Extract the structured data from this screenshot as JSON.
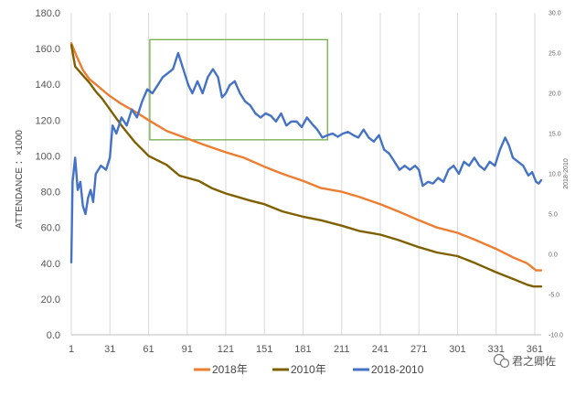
{
  "chart_data": {
    "type": "line",
    "title": "",
    "xlabel": "",
    "ylabel": "ATTENDANCE  ：×1000",
    "y2label": "2018-2010",
    "x_ticks": [
      1,
      31,
      61,
      91,
      121,
      151,
      181,
      211,
      241,
      271,
      301,
      331,
      361
    ],
    "x_range": [
      1,
      366
    ],
    "ylim": [
      0,
      180
    ],
    "y_ticks": [
      "0.0",
      "20.0",
      "40.0",
      "60.0",
      "80.0",
      "100.0",
      "120.0",
      "140.0",
      "160.0",
      "180.0"
    ],
    "y2lim": [
      -10,
      30
    ],
    "y2_ticks": [
      "-10.0",
      "-5.0",
      "0.0",
      "5.0",
      "10.0",
      "15.0",
      "20.0",
      "25.0",
      "30.0"
    ],
    "grid": "vertical",
    "legend_position": "bottom",
    "series": [
      {
        "name": "2018年",
        "axis": "left",
        "color": "#ed7d31",
        "points": [
          [
            1,
            163
          ],
          [
            5,
            156
          ],
          [
            10,
            148
          ],
          [
            15,
            143
          ],
          [
            20,
            140
          ],
          [
            30,
            134
          ],
          [
            40,
            129
          ],
          [
            50,
            125
          ],
          [
            61,
            120
          ],
          [
            75,
            114
          ],
          [
            90,
            110
          ],
          [
            105,
            106
          ],
          [
            121,
            102
          ],
          [
            135,
            99
          ],
          [
            151,
            94
          ],
          [
            165,
            90
          ],
          [
            181,
            86
          ],
          [
            195,
            82
          ],
          [
            211,
            80
          ],
          [
            225,
            77
          ],
          [
            241,
            73
          ],
          [
            255,
            69
          ],
          [
            271,
            64
          ],
          [
            285,
            60
          ],
          [
            301,
            57
          ],
          [
            315,
            53
          ],
          [
            331,
            48
          ],
          [
            345,
            43
          ],
          [
            355,
            40
          ],
          [
            362,
            36
          ],
          [
            366,
            36
          ]
        ]
      },
      {
        "name": "2010年",
        "axis": "left",
        "color": "#7f6000",
        "points": [
          [
            1,
            162
          ],
          [
            4,
            150
          ],
          [
            10,
            145
          ],
          [
            15,
            141
          ],
          [
            20,
            136
          ],
          [
            25,
            132
          ],
          [
            31,
            126
          ],
          [
            40,
            117
          ],
          [
            50,
            108
          ],
          [
            61,
            100
          ],
          [
            75,
            95
          ],
          [
            85,
            89
          ],
          [
            100,
            86
          ],
          [
            110,
            82
          ],
          [
            121,
            79
          ],
          [
            140,
            75
          ],
          [
            151,
            73
          ],
          [
            165,
            69
          ],
          [
            181,
            66
          ],
          [
            195,
            64
          ],
          [
            211,
            61
          ],
          [
            225,
            58
          ],
          [
            241,
            56
          ],
          [
            255,
            53
          ],
          [
            271,
            49
          ],
          [
            285,
            46
          ],
          [
            301,
            44
          ],
          [
            315,
            40
          ],
          [
            331,
            35
          ],
          [
            345,
            31
          ],
          [
            355,
            28
          ],
          [
            360,
            27
          ],
          [
            366,
            27
          ]
        ]
      },
      {
        "name": "2018-2010",
        "axis": "right",
        "color": "#4472c4",
        "points": [
          [
            1,
            -1
          ],
          [
            2,
            9
          ],
          [
            4,
            12
          ],
          [
            6,
            8
          ],
          [
            8,
            9
          ],
          [
            10,
            6
          ],
          [
            12,
            5
          ],
          [
            14,
            7
          ],
          [
            16,
            8
          ],
          [
            18,
            6.5
          ],
          [
            20,
            10
          ],
          [
            24,
            11
          ],
          [
            28,
            10.5
          ],
          [
            31,
            12
          ],
          [
            33,
            16
          ],
          [
            36,
            15
          ],
          [
            40,
            17
          ],
          [
            44,
            16
          ],
          [
            48,
            18
          ],
          [
            52,
            17
          ],
          [
            56,
            19
          ],
          [
            60,
            20.5
          ],
          [
            64,
            20
          ],
          [
            68,
            21
          ],
          [
            72,
            22
          ],
          [
            76,
            22.5
          ],
          [
            80,
            23
          ],
          [
            84,
            25
          ],
          [
            88,
            23
          ],
          [
            90,
            22
          ],
          [
            92,
            21
          ],
          [
            95,
            20
          ],
          [
            99,
            21.5
          ],
          [
            103,
            20
          ],
          [
            107,
            22
          ],
          [
            111,
            23
          ],
          [
            115,
            22
          ],
          [
            118,
            19.5
          ],
          [
            121,
            20
          ],
          [
            124,
            21
          ],
          [
            128,
            21.5
          ],
          [
            132,
            20
          ],
          [
            136,
            19
          ],
          [
            140,
            18.5
          ],
          [
            144,
            17.5
          ],
          [
            148,
            17
          ],
          [
            152,
            17.5
          ],
          [
            156,
            17.2
          ],
          [
            160,
            16.5
          ],
          [
            164,
            17.5
          ],
          [
            168,
            16
          ],
          [
            172,
            16.5
          ],
          [
            176,
            16.5
          ],
          [
            180,
            15.8
          ],
          [
            184,
            17
          ],
          [
            188,
            16.2
          ],
          [
            192,
            15.5
          ],
          [
            196,
            14.5
          ],
          [
            200,
            14.8
          ],
          [
            204,
            15
          ],
          [
            208,
            14.6
          ],
          [
            212,
            15
          ],
          [
            216,
            15.2
          ],
          [
            220,
            14.8
          ],
          [
            224,
            14.5
          ],
          [
            228,
            15.5
          ],
          [
            232,
            14.5
          ],
          [
            236,
            14
          ],
          [
            240,
            14.8
          ],
          [
            244,
            13
          ],
          [
            248,
            12.5
          ],
          [
            252,
            11.5
          ],
          [
            256,
            10.5
          ],
          [
            260,
            11
          ],
          [
            264,
            10.5
          ],
          [
            268,
            11
          ],
          [
            271,
            10.5
          ],
          [
            274,
            8.5
          ],
          [
            278,
            9
          ],
          [
            282,
            8.8
          ],
          [
            286,
            9.5
          ],
          [
            290,
            9
          ],
          [
            294,
            10.5
          ],
          [
            298,
            11
          ],
          [
            302,
            10
          ],
          [
            306,
            11.5
          ],
          [
            310,
            11
          ],
          [
            314,
            12
          ],
          [
            318,
            11
          ],
          [
            322,
            10.5
          ],
          [
            326,
            11.5
          ],
          [
            330,
            11
          ],
          [
            334,
            13
          ],
          [
            338,
            14.5
          ],
          [
            341,
            13.5
          ],
          [
            344,
            12
          ],
          [
            348,
            11.5
          ],
          [
            352,
            11
          ],
          [
            356,
            9.8
          ],
          [
            359,
            10.2
          ],
          [
            362,
            9
          ],
          [
            364,
            8.8
          ],
          [
            366,
            9.2
          ]
        ]
      }
    ],
    "highlight_box": {
      "x_range": [
        62,
        200
      ],
      "y_range": [
        109,
        165
      ],
      "color": "#70ad47"
    }
  },
  "watermark": {
    "text": "君之卿佐",
    "icon": "wechat-icon"
  }
}
